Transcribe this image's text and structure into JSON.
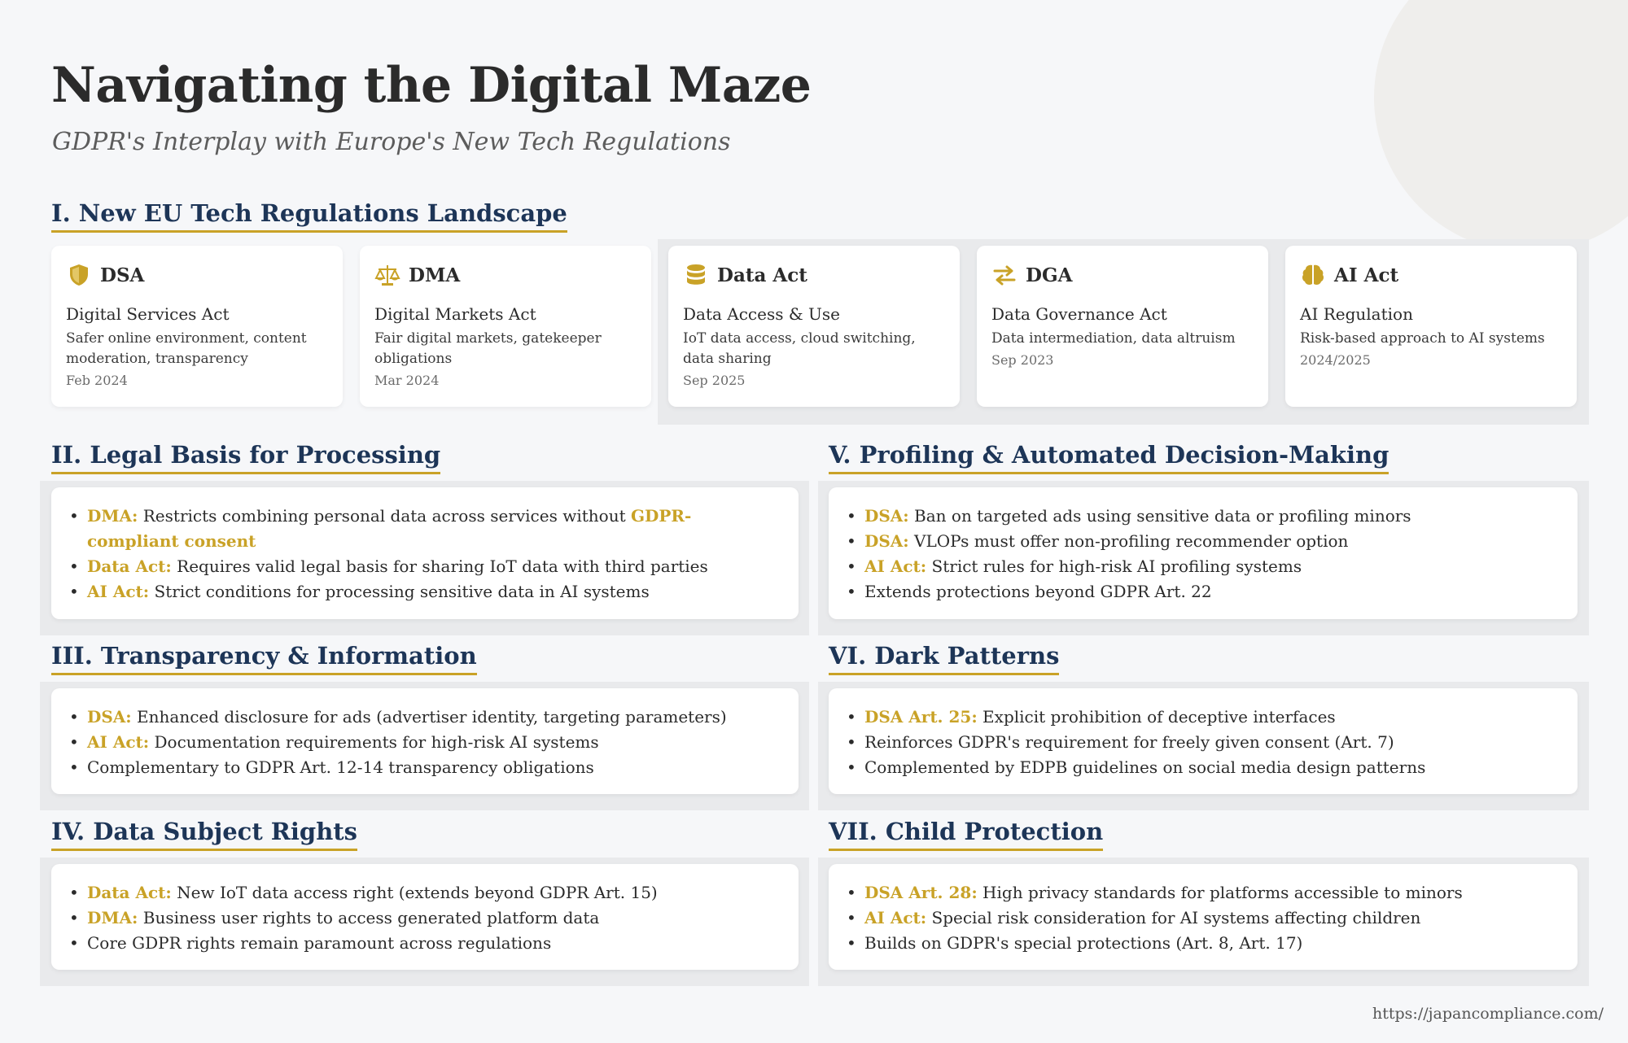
{
  "header": {
    "title": "Navigating the Digital Maze",
    "subtitle": "GDPR's Interplay with Europe's New Tech Regulations"
  },
  "colors": {
    "accent": "#c9a227",
    "heading": "#1d3557",
    "background": "#f6f7f9"
  },
  "section1": {
    "heading": "I. New EU Tech Regulations Landscape",
    "regs": [
      {
        "icon": "shield-icon",
        "name": "DSA",
        "full": "Digital Services Act",
        "desc": "Safer online environment, content moderation, transparency",
        "date": "Feb 2024"
      },
      {
        "icon": "balance-scale-icon",
        "name": "DMA",
        "full": "Digital Markets Act",
        "desc": "Fair digital markets, gatekeeper obligations",
        "date": "Mar 2024"
      },
      {
        "icon": "database-icon",
        "name": "Data Act",
        "full": "Data Access & Use",
        "desc": "IoT data access, cloud switching, data sharing",
        "date": "Sep 2025"
      },
      {
        "icon": "exchange-arrows-icon",
        "name": "DGA",
        "full": "Data Governance Act",
        "desc": "Data intermediation, data altruism",
        "date": "Sep 2023"
      },
      {
        "icon": "brain-icon",
        "name": "AI Act",
        "full": "AI Regulation",
        "desc": "Risk-based approach to AI systems",
        "date": "2024/2025"
      }
    ]
  },
  "section2": {
    "heading": "II. Legal Basis for Processing",
    "items": [
      {
        "label": "DMA:",
        "text": " Restricts combining personal data across services without ",
        "label2": "GDPR-compliant consent"
      },
      {
        "label": "Data Act:",
        "text": " Requires valid legal basis for sharing IoT data with third parties"
      },
      {
        "label": "AI Act:",
        "text": " Strict conditions for processing sensitive data in AI systems"
      }
    ]
  },
  "section3": {
    "heading": "III. Transparency & Information",
    "items": [
      {
        "label": "DSA:",
        "text": " Enhanced disclosure for ads (advertiser identity, targeting parameters)"
      },
      {
        "label": "AI Act:",
        "text": " Documentation requirements for high-risk AI systems"
      },
      {
        "label": "",
        "text": "Complementary to GDPR Art. 12-14 transparency obligations"
      }
    ]
  },
  "section4": {
    "heading": "IV. Data Subject Rights",
    "items": [
      {
        "label": "Data Act:",
        "text": " New IoT data access right (extends beyond GDPR Art. 15)"
      },
      {
        "label": "DMA:",
        "text": " Business user rights to access generated platform data"
      },
      {
        "label": "",
        "text": "Core GDPR rights remain paramount across regulations"
      }
    ]
  },
  "section5": {
    "heading": "V. Profiling & Automated Decision-Making",
    "items": [
      {
        "label": "DSA:",
        "text": " Ban on targeted ads using sensitive data or profiling minors"
      },
      {
        "label": "DSA:",
        "text": " VLOPs must offer non-profiling recommender option"
      },
      {
        "label": "AI Act:",
        "text": " Strict rules for high-risk AI profiling systems"
      },
      {
        "label": "",
        "text": "Extends protections beyond GDPR Art. 22"
      }
    ]
  },
  "section6": {
    "heading": "VI. Dark Patterns",
    "items": [
      {
        "label": "DSA Art. 25:",
        "text": " Explicit prohibition of deceptive interfaces"
      },
      {
        "label": "",
        "text": "Reinforces GDPR's requirement for freely given consent (Art. 7)"
      },
      {
        "label": "",
        "text": "Complemented by EDPB guidelines on social media design patterns"
      }
    ]
  },
  "section7": {
    "heading": "VII. Child Protection",
    "items": [
      {
        "label": "DSA Art. 28:",
        "text": " High privacy standards for platforms accessible to minors"
      },
      {
        "label": "AI Act:",
        "text": " Special risk consideration for AI systems affecting children"
      },
      {
        "label": "",
        "text": "Builds on GDPR's special protections (Art. 8, Art. 17)"
      }
    ]
  },
  "footer": {
    "url": "https://japancompliance.com/"
  }
}
